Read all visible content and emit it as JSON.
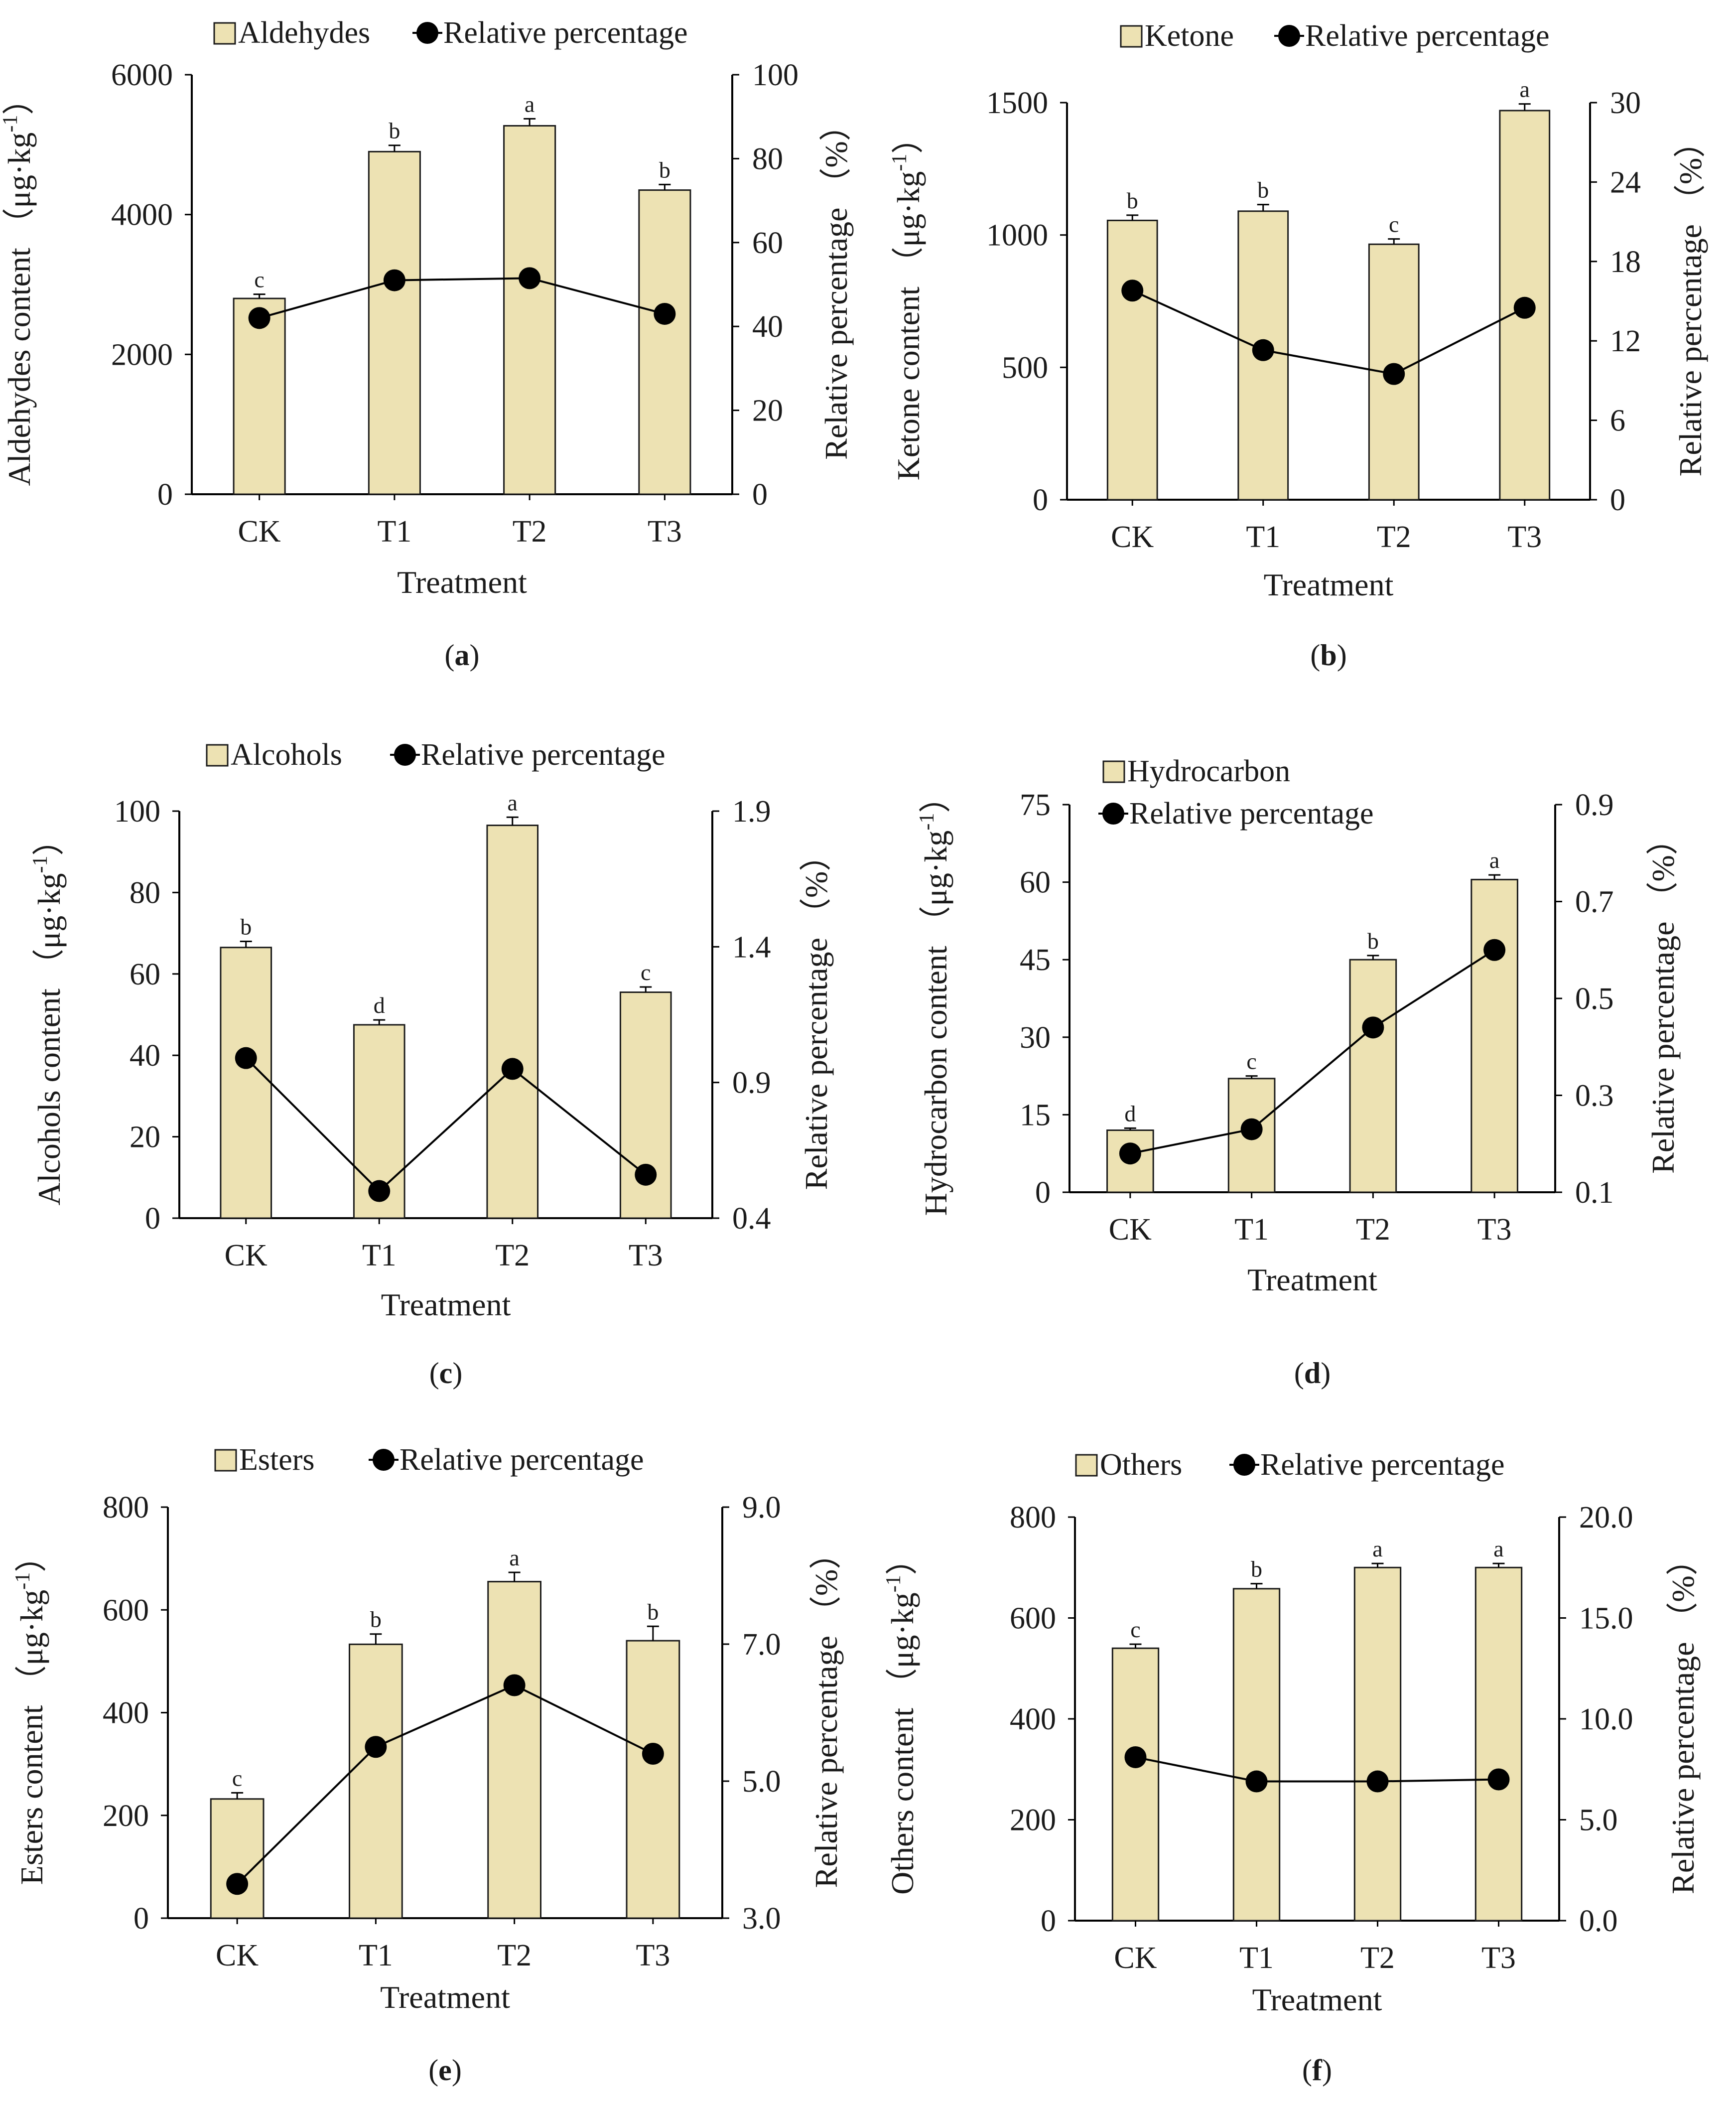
{
  "figure": {
    "bar_color": "#ede2b3",
    "bar_stroke": "#1a1a1a",
    "line_color": "#000000"
  },
  "chart_data": [
    {
      "panel": "a",
      "panel_label_prefix": "(",
      "panel_label_letter": "a",
      "panel_label_suffix": ")",
      "type": "bar",
      "categories": [
        "CK",
        "T1",
        "T2",
        "T3"
      ],
      "xlabel": "Treatment",
      "ylabel": "Aldehydes content （μg·kg",
      "ylabel_sup": "-1",
      "ylabel_close": "）",
      "y2label": "Relative percentage （%）",
      "legend": {
        "bar": "Aldehydes",
        "line": "Relative percentage"
      },
      "ylim": [
        0,
        6000
      ],
      "yticks": [
        "0",
        "2000",
        "4000",
        "6000"
      ],
      "y2lim": [
        0,
        100
      ],
      "y2ticks": [
        "0",
        "20",
        "40",
        "60",
        "80",
        "100"
      ],
      "series": [
        {
          "name": "Aldehydes",
          "kind": "bar",
          "values": [
            2800,
            4900,
            5270,
            4350
          ],
          "errors": [
            60,
            90,
            100,
            80
          ],
          "letters": [
            "c",
            "b",
            "a",
            "b"
          ]
        },
        {
          "name": "Relative percentage",
          "kind": "line",
          "axis": "right",
          "values": [
            42,
            51,
            51.5,
            43
          ]
        }
      ]
    },
    {
      "panel": "b",
      "panel_label_prefix": "(",
      "panel_label_letter": "b",
      "panel_label_suffix": ")",
      "type": "bar",
      "categories": [
        "CK",
        "T1",
        "T2",
        "T3"
      ],
      "xlabel": "Treatment",
      "ylabel": "Ketone content （μg·kg",
      "ylabel_sup": "-1",
      "ylabel_close": "）",
      "y2label": "Relative percentage （%）",
      "legend": {
        "bar": "Ketone",
        "line": "Relative percentage"
      },
      "ylim": [
        0,
        1500
      ],
      "yticks": [
        "0",
        "500",
        "1000",
        "1500"
      ],
      "y2lim": [
        0,
        30
      ],
      "y2ticks": [
        "0",
        "6",
        "12",
        "18",
        "24",
        "30"
      ],
      "series": [
        {
          "name": "Ketone",
          "kind": "bar",
          "values": [
            1055,
            1090,
            965,
            1470
          ],
          "errors": [
            20,
            25,
            20,
            25
          ],
          "letters": [
            "b",
            "b",
            "c",
            "a"
          ]
        },
        {
          "name": "Relative percentage",
          "kind": "line",
          "axis": "right",
          "values": [
            15.8,
            11.3,
            9.5,
            14.5
          ]
        }
      ]
    },
    {
      "panel": "c",
      "panel_label_prefix": "(",
      "panel_label_letter": "c",
      "panel_label_suffix": ")",
      "type": "bar",
      "categories": [
        "CK",
        "T1",
        "T2",
        "T3"
      ],
      "xlabel": "Treatment",
      "ylabel": "Alcohols content （μg·kg",
      "ylabel_sup": "-1",
      "ylabel_close": "）",
      "y2label": "Relative percentage （%）",
      "legend": {
        "bar": "Alcohols",
        "line": "Relative percentage"
      },
      "ylim": [
        0,
        100
      ],
      "yticks": [
        "0",
        "20",
        "40",
        "60",
        "80",
        "100"
      ],
      "y2lim": [
        0.4,
        1.9
      ],
      "y2ticks": [
        "0.4",
        "0.9",
        "1.4",
        "1.9"
      ],
      "series": [
        {
          "name": "Alcohols",
          "kind": "bar",
          "values": [
            66.5,
            47.5,
            96.5,
            55.5
          ],
          "errors": [
            1.5,
            1.2,
            2.0,
            1.3
          ],
          "letters": [
            "b",
            "d",
            "a",
            "c"
          ]
        },
        {
          "name": "Relative percentage",
          "kind": "line",
          "axis": "right",
          "values": [
            0.99,
            0.5,
            0.95,
            0.56
          ]
        }
      ]
    },
    {
      "panel": "d",
      "panel_label_prefix": "(",
      "panel_label_letter": "d",
      "panel_label_suffix": ")",
      "type": "bar",
      "categories": [
        "CK",
        "T1",
        "T2",
        "T3"
      ],
      "xlabel": "Treatment",
      "ylabel": "Hydrocarbon content （μg·kg",
      "ylabel_sup": "-1",
      "ylabel_close": "）",
      "y2label": "Relative percentage （%）",
      "legend": {
        "bar": "Hydrocarbon",
        "line": "Relative percentage"
      },
      "ylim": [
        0,
        75
      ],
      "yticks": [
        "0",
        "15",
        "30",
        "45",
        "60",
        "75"
      ],
      "y2lim": [
        0.1,
        0.9
      ],
      "y2ticks": [
        "0.1",
        "0.3",
        "0.5",
        "0.7",
        "0.9"
      ],
      "series": [
        {
          "name": "Hydrocarbon",
          "kind": "bar",
          "values": [
            12,
            22,
            45,
            60.5
          ],
          "errors": [
            0.4,
            0.5,
            0.8,
            0.9
          ],
          "letters": [
            "d",
            "c",
            "b",
            "a"
          ]
        },
        {
          "name": "Relative percentage",
          "kind": "line",
          "axis": "right",
          "values": [
            0.18,
            0.23,
            0.44,
            0.6
          ]
        }
      ]
    },
    {
      "panel": "e",
      "panel_label_prefix": "(",
      "panel_label_letter": "e",
      "panel_label_suffix": ")",
      "type": "bar",
      "categories": [
        "CK",
        "T1",
        "T2",
        "T3"
      ],
      "xlabel": "Treatment",
      "ylabel": "Esters content （μg·kg",
      "ylabel_sup": "-1",
      "ylabel_close": "）",
      "y2label": "Relative percentage （%）",
      "legend": {
        "bar": "Esters",
        "line": "Relative percentage"
      },
      "ylim": [
        0,
        800
      ],
      "yticks": [
        "0",
        "200",
        "400",
        "600",
        "800"
      ],
      "y2lim": [
        3.0,
        9.0
      ],
      "y2ticks": [
        "3.0",
        "5.0",
        "7.0",
        "9.0"
      ],
      "series": [
        {
          "name": "Esters",
          "kind": "bar",
          "values": [
            232,
            533,
            655,
            540
          ],
          "errors": [
            12,
            20,
            18,
            28
          ],
          "letters": [
            "c",
            "b",
            "a",
            "b"
          ]
        },
        {
          "name": "Relative percentage",
          "kind": "line",
          "axis": "right",
          "values": [
            3.5,
            5.5,
            6.4,
            5.4
          ]
        }
      ]
    },
    {
      "panel": "f",
      "panel_label_prefix": "(",
      "panel_label_letter": "f",
      "panel_label_suffix": ")",
      "type": "bar",
      "categories": [
        "CK",
        "T1",
        "T2",
        "T3"
      ],
      "xlabel": "Treatment",
      "ylabel": "Others content （μg·kg",
      "ylabel_sup": "-1",
      "ylabel_close": "）",
      "y2label": "Relative percentage （%）",
      "legend": {
        "bar": "Others",
        "line": "Relative percentage"
      },
      "ylim": [
        0,
        800
      ],
      "yticks": [
        "0",
        "200",
        "400",
        "600",
        "800"
      ],
      "y2lim": [
        0,
        20
      ],
      "y2ticks": [
        "0.0",
        "5.0",
        "10.0",
        "15.0",
        "20.0"
      ],
      "series": [
        {
          "name": "Others",
          "kind": "bar",
          "values": [
            540,
            658,
            700,
            700
          ],
          "errors": [
            8,
            10,
            8,
            8
          ],
          "letters": [
            "c",
            "b",
            "a",
            "a"
          ]
        },
        {
          "name": "Relative percentage",
          "kind": "line",
          "axis": "right",
          "values": [
            8.1,
            6.9,
            6.9,
            7.0
          ]
        }
      ]
    }
  ]
}
